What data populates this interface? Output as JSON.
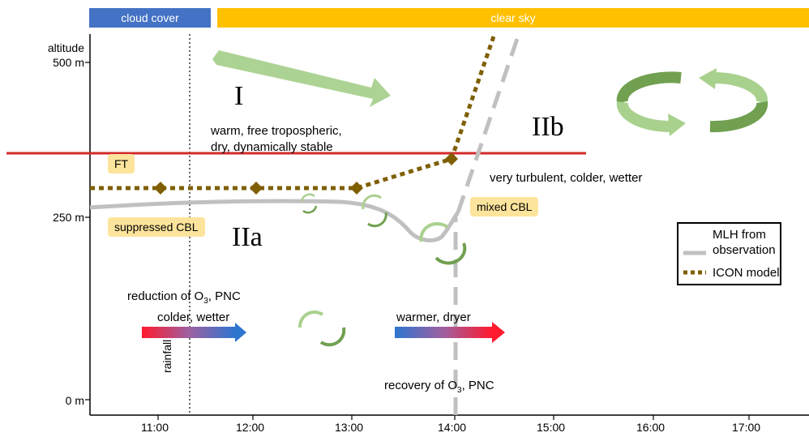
{
  "bars": {
    "cloud_cover": "cloud cover",
    "clear_sky": "clear sky"
  },
  "axes": {
    "y_title_line1": "altitude",
    "y_tick_500": "500 m",
    "y_tick_250": "250 m",
    "y_tick_0": "0 m",
    "x_ticks": [
      "11:00",
      "12:00",
      "13:00",
      "14:00",
      "15:00",
      "16:00",
      "17:00"
    ]
  },
  "regions": {
    "I": "I",
    "IIa": "IIa",
    "IIb": "IIb"
  },
  "descriptions": {
    "ft_line1": "warm, free tropospheric,",
    "ft_line2": "dry, dynamically stable",
    "turbulent": "very turbulent, colder, wetter",
    "reduction_prefix": "reduction of O",
    "reduction_sub": "3",
    "reduction_suffix": ", PNC",
    "colder_wetter": "colder, wetter",
    "warmer_dryer": "warmer, dryer",
    "recovery_prefix": "recovery of O",
    "recovery_sub": "3",
    "recovery_suffix": ", PNC",
    "rainfall": "rainfall"
  },
  "badges": {
    "ft": "FT",
    "suppressed": "suppressed CBL",
    "mixed": "mixed CBL"
  },
  "legend": {
    "mlh_line1": "MLH from",
    "mlh_line2": "observation",
    "icon": "ICON model"
  },
  "colors": {
    "cloud_bar": "#4472c4",
    "clear_bar": "#ffc000",
    "observation_line": "#c0c0c0",
    "model_line": "#7f5f00",
    "red_line": "#d42a2a",
    "green_light": "#a9d18e",
    "green_dark": "#70a050"
  }
}
